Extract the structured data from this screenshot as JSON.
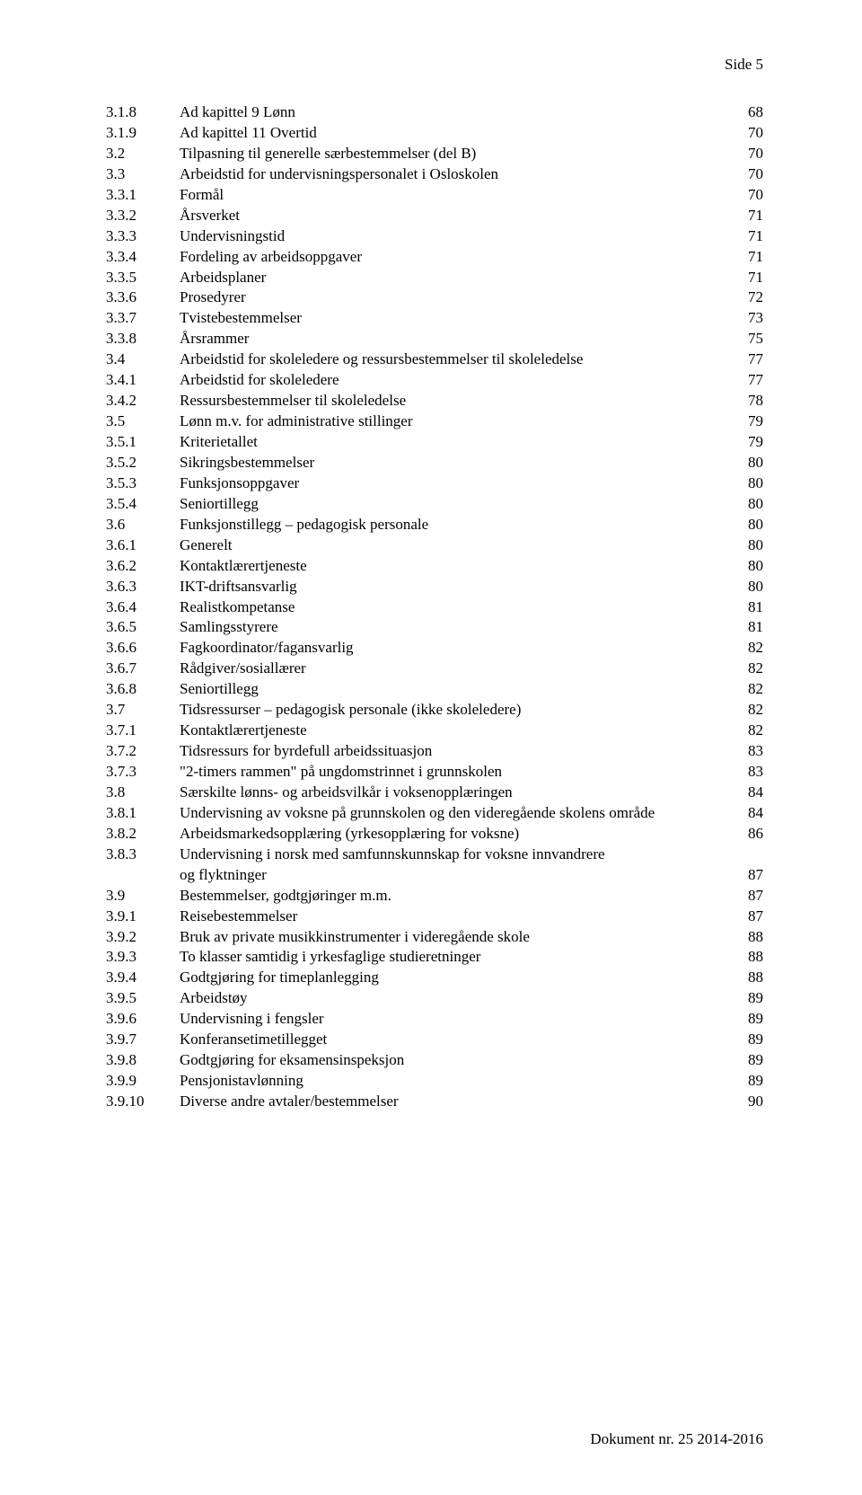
{
  "header": "Side 5",
  "footer": "Dokument nr. 25 2014-2016",
  "toc": [
    {
      "num": "3.1.8",
      "title": "Ad kapittel 9 Lønn",
      "page": "68"
    },
    {
      "num": "3.1.9",
      "title": "Ad kapittel 11 Overtid",
      "page": "70"
    },
    {
      "num": "3.2",
      "title": "Tilpasning til generelle særbestemmelser (del B)",
      "page": "70"
    },
    {
      "num": "3.3",
      "title": "Arbeidstid for undervisningspersonalet i Osloskolen",
      "page": "70"
    },
    {
      "num": "3.3.1",
      "title": "Formål",
      "page": "70"
    },
    {
      "num": "3.3.2",
      "title": "Årsverket",
      "page": "71"
    },
    {
      "num": "3.3.3",
      "title": "Undervisningstid",
      "page": "71"
    },
    {
      "num": "3.3.4",
      "title": "Fordeling av arbeidsoppgaver",
      "page": "71"
    },
    {
      "num": "3.3.5",
      "title": "Arbeidsplaner",
      "page": "71"
    },
    {
      "num": "3.3.6",
      "title": "Prosedyrer",
      "page": "72"
    },
    {
      "num": "3.3.7",
      "title": "Tvistebestemmelser",
      "page": "73"
    },
    {
      "num": "3.3.8",
      "title": "Årsrammer",
      "page": "75"
    },
    {
      "num": "3.4",
      "title": "Arbeidstid for skoleledere og ressursbestemmelser til skoleledelse",
      "page": "77"
    },
    {
      "num": "3.4.1",
      "title": "Arbeidstid for skoleledere",
      "page": "77"
    },
    {
      "num": "3.4.2",
      "title": "Ressursbestemmelser til skoleledelse",
      "page": "78"
    },
    {
      "num": "3.5",
      "title": "Lønn m.v. for administrative stillinger",
      "page": "79"
    },
    {
      "num": "3.5.1",
      "title": "Kriterietallet",
      "page": "79"
    },
    {
      "num": "3.5.2",
      "title": "Sikringsbestemmelser",
      "page": "80"
    },
    {
      "num": "3.5.3",
      "title": "Funksjonsoppgaver",
      "page": "80"
    },
    {
      "num": "3.5.4",
      "title": "Seniortillegg",
      "page": "80"
    },
    {
      "num": "3.6",
      "title": "Funksjonstillegg – pedagogisk personale",
      "page": "80"
    },
    {
      "num": "3.6.1",
      "title": "Generelt",
      "page": "80"
    },
    {
      "num": "3.6.2",
      "title": "Kontaktlærertjeneste",
      "page": "80"
    },
    {
      "num": "3.6.3",
      "title": "IKT-driftsansvarlig",
      "page": "80"
    },
    {
      "num": "3.6.4",
      "title": "Realistkompetanse",
      "page": "81"
    },
    {
      "num": "3.6.5",
      "title": "Samlingsstyrere",
      "page": "81"
    },
    {
      "num": "3.6.6",
      "title": "Fagkoordinator/fagansvarlig",
      "page": "82"
    },
    {
      "num": "3.6.7",
      "title": "Rådgiver/sosiallærer",
      "page": "82"
    },
    {
      "num": "3.6.8",
      "title": "Seniortillegg",
      "page": "82"
    },
    {
      "num": "3.7",
      "title": "Tidsressurser – pedagogisk personale (ikke skoleledere)",
      "page": "82"
    },
    {
      "num": "3.7.1",
      "title": "Kontaktlærertjeneste",
      "page": "82"
    },
    {
      "num": "3.7.2",
      "title": "Tidsressurs for byrdefull arbeidssituasjon",
      "page": "83"
    },
    {
      "num": "3.7.3",
      "title": "\"2-timers rammen\" på ungdomstrinnet i grunnskolen",
      "page": "83"
    },
    {
      "num": "3.8",
      "title": "Særskilte lønns- og arbeidsvilkår i voksenopplæringen",
      "page": "84"
    },
    {
      "num": "3.8.1",
      "title": "Undervisning av voksne på grunnskolen og den videregående skolens område",
      "page": "84"
    },
    {
      "num": "3.8.2",
      "title": "Arbeidsmarkedsopplæring (yrkesopplæring for voksne)",
      "page": "86"
    },
    {
      "num": "3.8.3",
      "title": "Undervisning i norsk med samfunnskunnskap for voksne innvandrere",
      "page": "",
      "nowrap": true
    },
    {
      "num": "",
      "title": "og flyktninger",
      "page": "87"
    },
    {
      "num": "3.9",
      "title": "Bestemmelser, godtgjøringer m.m. ",
      "page": "87"
    },
    {
      "num": "3.9.1",
      "title": "Reisebestemmelser",
      "page": "87"
    },
    {
      "num": "3.9.2",
      "title": "Bruk av private musikkinstrumenter i videregående skole",
      "page": "88"
    },
    {
      "num": "3.9.3",
      "title": "To klasser samtidig i yrkesfaglige studieretninger",
      "page": "88"
    },
    {
      "num": "3.9.4",
      "title": "Godtgjøring for timeplanlegging",
      "page": "88"
    },
    {
      "num": "3.9.5",
      "title": "Arbeidstøy",
      "page": "89"
    },
    {
      "num": "3.9.6",
      "title": "Undervisning i fengsler",
      "page": "89"
    },
    {
      "num": "3.9.7",
      "title": "Konferansetimetillegget",
      "page": "89"
    },
    {
      "num": "3.9.8",
      "title": "Godtgjøring for eksamensinspeksjon",
      "page": "89"
    },
    {
      "num": "3.9.9",
      "title": "Pensjonistavlønning",
      "page": "89"
    },
    {
      "num": "3.9.10",
      "title": " Diverse andre avtaler/bestemmelser",
      "page": "90"
    }
  ]
}
